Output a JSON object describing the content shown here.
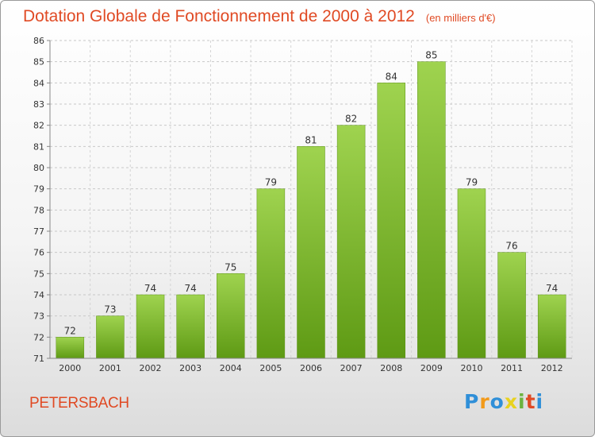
{
  "title": "Dotation Globale de Fonctionnement de 2000 à 2012",
  "unit_note": "(en milliers d'€)",
  "commune": "PETERSBACH",
  "logo": {
    "letters": [
      "P",
      "r",
      "o",
      "x",
      "i",
      "t",
      "i"
    ],
    "colors": [
      "#2f8fd8",
      "#f29a1a",
      "#2f8fd8",
      "#e8d21e",
      "#6cb33f",
      "#e04a24",
      "#2f8fd8"
    ]
  },
  "chart_data": {
    "type": "bar",
    "categories": [
      "2000",
      "2001",
      "2002",
      "2003",
      "2004",
      "2005",
      "2006",
      "2007",
      "2008",
      "2009",
      "2010",
      "2011",
      "2012"
    ],
    "values": [
      72,
      73,
      74,
      74,
      75,
      79,
      81,
      82,
      84,
      85,
      79,
      76,
      74
    ],
    "title": "Dotation Globale de Fonctionnement de 2000 à 2012",
    "ylim": [
      71,
      86
    ],
    "yticks": [
      71,
      72,
      73,
      74,
      75,
      76,
      77,
      78,
      79,
      80,
      81,
      82,
      83,
      84,
      85,
      86
    ],
    "grid": true,
    "bar_color": "#7dbb2c"
  }
}
